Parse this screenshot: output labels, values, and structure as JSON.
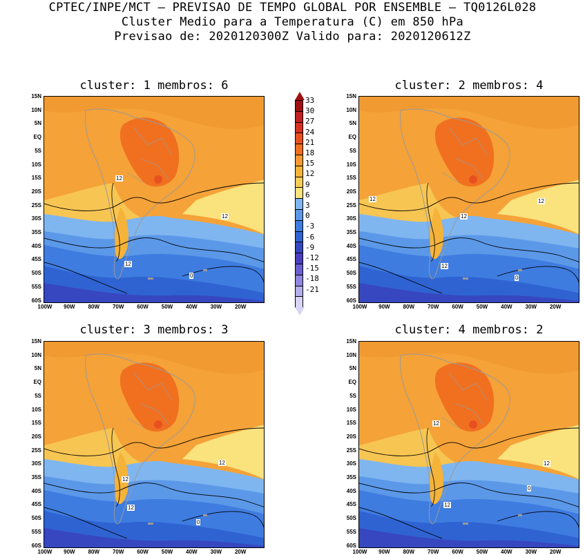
{
  "header": {
    "line1": "CPTEC/INPE/MCT – PREVISAO DE TEMPO GLOBAL POR ENSEMBLE – TQ0126L028",
    "line2": "Cluster Medio para a Temperatura (C) em 850 hPa",
    "line3": "Previsao de: 2020120300Z   Valido para: 2020120612Z"
  },
  "panels": [
    {
      "title": "cluster: 1  membros: 6",
      "contour_labels": [
        "12",
        "12",
        "12",
        "0"
      ]
    },
    {
      "title": "cluster: 2  membros: 4",
      "contour_labels": [
        "12",
        "12",
        "12",
        "12",
        "0"
      ]
    },
    {
      "title": "cluster: 3  membros: 3",
      "contour_labels": [
        "12",
        "12",
        "12",
        "0"
      ]
    },
    {
      "title": "cluster: 4  membros: 2",
      "contour_labels": [
        "12",
        "12",
        "12",
        "0"
      ]
    }
  ],
  "axes": {
    "lat_labels": [
      "15N",
      "10N",
      "5N",
      "EQ",
      "5S",
      "10S",
      "15S",
      "20S",
      "25S",
      "30S",
      "35S",
      "40S",
      "45S",
      "50S",
      "55S",
      "60S"
    ],
    "lon_labels": [
      "100W",
      "90W",
      "80W",
      "70W",
      "60W",
      "50W",
      "40W",
      "30W",
      "20W"
    ]
  },
  "colorbar": {
    "labels": [
      "33",
      "30",
      "27",
      "24",
      "21",
      "18",
      "15",
      "12",
      "9",
      "6",
      "3",
      "0",
      "-3",
      "-6",
      "-9",
      "-12",
      "-15",
      "-18",
      "-21"
    ],
    "colors": [
      "#a01010",
      "#c02020",
      "#d83020",
      "#e85020",
      "#f07020",
      "#f49a30",
      "#f5b33a",
      "#f7cd55",
      "#fae27c",
      "#7fb6f0",
      "#5b98e8",
      "#3f7ce0",
      "#2f63d2",
      "#3747c0",
      "#4a3fc0",
      "#6a5ed0",
      "#8f86e0",
      "#b4aeec",
      "#d8d4f6"
    ]
  }
}
